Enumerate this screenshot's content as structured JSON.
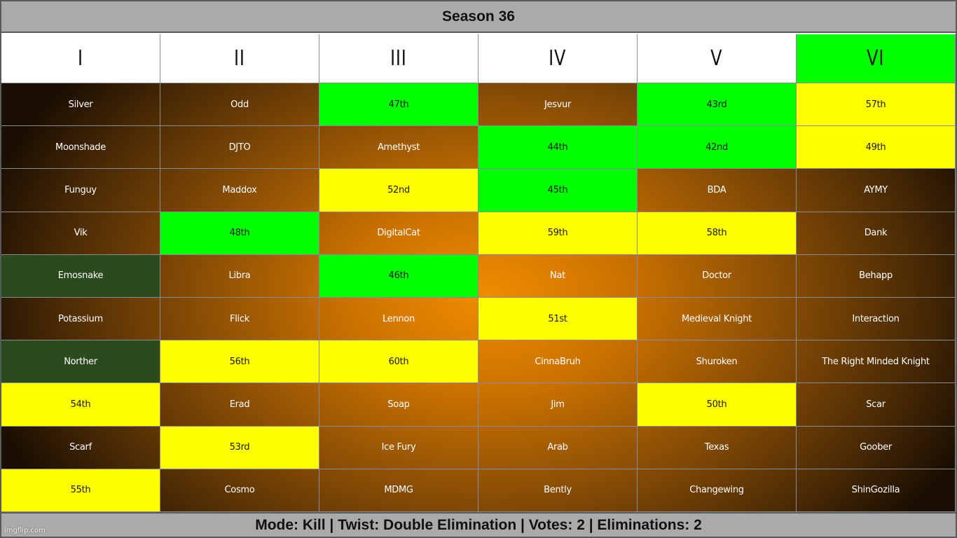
{
  "title": "Season 36",
  "columns": [
    {
      "label": "I",
      "color": "white"
    },
    {
      "label": "II",
      "color": "white"
    },
    {
      "label": "III",
      "color": "white"
    },
    {
      "label": "IV",
      "color": "white"
    },
    {
      "label": "V",
      "color": "white"
    },
    {
      "label": "VI",
      "color": "green"
    }
  ],
  "rows": [
    [
      {
        "text": "Silver",
        "status": "brown"
      },
      {
        "text": "Odd",
        "status": "brown"
      },
      {
        "text": "47th",
        "status": "green"
      },
      {
        "text": "Jesvur",
        "status": "brown"
      },
      {
        "text": "43rd",
        "status": "green"
      },
      {
        "text": "57th",
        "status": "yellow"
      }
    ],
    [
      {
        "text": "Moonshade",
        "status": "brown"
      },
      {
        "text": "DJTO",
        "status": "brown"
      },
      {
        "text": "Amethyst",
        "status": "brown"
      },
      {
        "text": "44th",
        "status": "green"
      },
      {
        "text": "42nd",
        "status": "green"
      },
      {
        "text": "49th",
        "status": "yellow"
      }
    ],
    [
      {
        "text": "Funguy",
        "status": "brown"
      },
      {
        "text": "Maddox",
        "status": "brown"
      },
      {
        "text": "52nd",
        "status": "yellow"
      },
      {
        "text": "45th",
        "status": "green"
      },
      {
        "text": "BDA",
        "status": "brown"
      },
      {
        "text": "AYMY",
        "status": "brown"
      }
    ],
    [
      {
        "text": "Vik",
        "status": "brown"
      },
      {
        "text": "48th",
        "status": "green"
      },
      {
        "text": "DigitalCat",
        "status": "brown"
      },
      {
        "text": "59th",
        "status": "yellow"
      },
      {
        "text": "58th",
        "status": "yellow"
      },
      {
        "text": "Dank",
        "status": "brown"
      }
    ],
    [
      {
        "text": "Emosnake",
        "status": "dkgreen"
      },
      {
        "text": "Libra",
        "status": "brown"
      },
      {
        "text": "46th",
        "status": "green"
      },
      {
        "text": "Nat",
        "status": "brown"
      },
      {
        "text": "Doctor",
        "status": "brown"
      },
      {
        "text": "Behapp",
        "status": "brown"
      }
    ],
    [
      {
        "text": "Potassium",
        "status": "brown"
      },
      {
        "text": "Flick",
        "status": "brown"
      },
      {
        "text": "Lennon",
        "status": "brown"
      },
      {
        "text": "51st",
        "status": "yellow"
      },
      {
        "text": "Medieval Knight",
        "status": "brown"
      },
      {
        "text": "Interaction",
        "status": "brown"
      }
    ],
    [
      {
        "text": "Norther",
        "status": "dkgreen"
      },
      {
        "text": "56th",
        "status": "yellow"
      },
      {
        "text": "60th",
        "status": "yellow"
      },
      {
        "text": "CinnaBruh",
        "status": "brown"
      },
      {
        "text": "Shuroken",
        "status": "brown"
      },
      {
        "text": "The Right Minded Knight",
        "status": "brown"
      }
    ],
    [
      {
        "text": "54th",
        "status": "yellow"
      },
      {
        "text": "Erad",
        "status": "brown"
      },
      {
        "text": "Soap",
        "status": "brown"
      },
      {
        "text": "Jim",
        "status": "brown"
      },
      {
        "text": "50th",
        "status": "yellow"
      },
      {
        "text": "Scar",
        "status": "brown"
      }
    ],
    [
      {
        "text": "Scarf",
        "status": "brown"
      },
      {
        "text": "53rd",
        "status": "yellow"
      },
      {
        "text": "Ice Fury",
        "status": "brown"
      },
      {
        "text": "Arab",
        "status": "brown"
      },
      {
        "text": "Texas",
        "status": "brown"
      },
      {
        "text": "Goober",
        "status": "brown"
      }
    ],
    [
      {
        "text": "55th",
        "status": "yellow"
      },
      {
        "text": "Cosmo",
        "status": "brown"
      },
      {
        "text": "MDMG",
        "status": "brown"
      },
      {
        "text": "Bently",
        "status": "brown"
      },
      {
        "text": "Changewing",
        "status": "brown"
      },
      {
        "text": "ShinGozilla",
        "status": "brown"
      }
    ]
  ],
  "footer": "Mode: Kill | Twist: Double Elimination | Votes: 2 | Eliminations: 2",
  "watermark": "imgflip.com",
  "colors": {
    "green": "#00ff00",
    "yellow": "#ffff00",
    "dark_green": "#2b4a1e",
    "orange_center": "#f08c00",
    "header_gray": "#aaaaaa"
  }
}
